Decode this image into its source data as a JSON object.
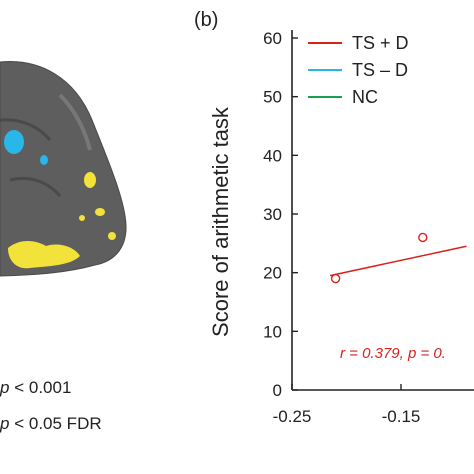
{
  "panel_label": "(b)",
  "brain_legend": [
    {
      "symbol": "p",
      "relation": "<",
      "value": "0.001"
    },
    {
      "symbol": "p",
      "relation": "<",
      "value": "0.05 FDR"
    }
  ],
  "colors": {
    "cortex": "#5e5e5e",
    "cortex_dark": "#3f3f3f",
    "blob_blue": "#29b6e8",
    "blob_yellow": "#f2e23a",
    "ts_plus_d": "#d9221c",
    "ts_minus_d": "#2bb5e6",
    "nc": "#18a050",
    "axis": "#222222"
  },
  "chart_data": {
    "type": "scatter",
    "ylabel": "Score of arithmetic task",
    "xlabel": "",
    "x_ticks": [
      "-0.25",
      "-0.15"
    ],
    "y_ticks": [
      "0",
      "10",
      "20",
      "30",
      "40",
      "50",
      "60"
    ],
    "ylim": [
      0,
      60
    ],
    "xlim_visible": [
      -0.25,
      -0.09
    ],
    "legend_position": "top-left",
    "series": [
      {
        "name": "TS + D",
        "color_key": "ts_plus_d",
        "points": [
          {
            "x": -0.21,
            "y": 19
          },
          {
            "x": -0.13,
            "y": 26
          }
        ],
        "fit": {
          "x_start": -0.215,
          "y_start": 19.5,
          "x_end": -0.09,
          "y_end": 24.5
        }
      },
      {
        "name": "TS – D",
        "color_key": "ts_minus_d",
        "points": []
      },
      {
        "name": "NC",
        "color_key": "nc",
        "points": []
      }
    ],
    "annotation": "r = 0.379, p = 0."
  }
}
